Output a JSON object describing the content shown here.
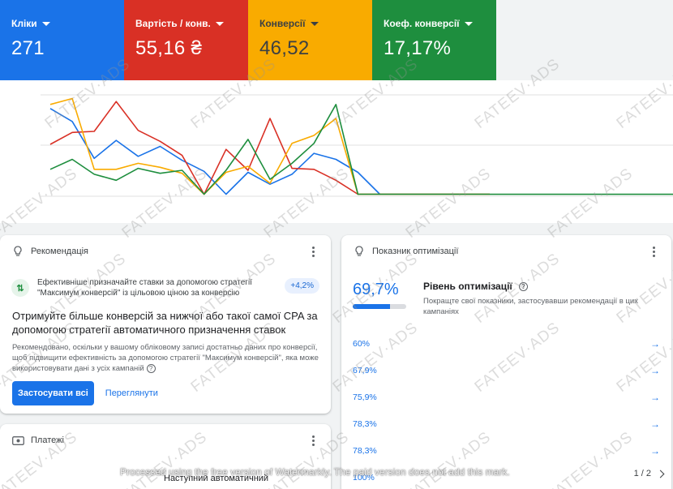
{
  "metrics": [
    {
      "label": "Кліки",
      "value": "271",
      "color": "#1a73e8"
    },
    {
      "label": "Вартість / конв.",
      "value": "55,16 ₴",
      "color": "#d93025"
    },
    {
      "label": "Конверсії",
      "value": "46,52",
      "color": "#f9ab00"
    },
    {
      "label": "Коеф. конверсії",
      "value": "17,17%",
      "color": "#1e8e3e"
    }
  ],
  "chart_data": {
    "type": "line",
    "grid": true,
    "legend": "none",
    "x": [
      1,
      2,
      3,
      4,
      5,
      6,
      7,
      8,
      9,
      10,
      11,
      12,
      13,
      14,
      15,
      16,
      17,
      18,
      19,
      20,
      21
    ],
    "series": [
      {
        "color": "#1a73e8",
        "values": [
          0.88,
          0.75,
          0.38,
          0.56,
          0.4,
          0.5,
          0.36,
          0.25,
          0.02,
          0.24,
          0.12,
          0.22,
          0.43,
          0.37,
          0.24,
          0.02,
          0.02,
          0.02,
          0.02,
          0.02,
          0.02
        ]
      },
      {
        "color": "#d93025",
        "values": [
          0.52,
          0.64,
          0.65,
          0.95,
          0.66,
          0.55,
          0.41,
          0.02,
          0.47,
          0.26,
          0.78,
          0.28,
          0.27,
          0.16,
          0.02,
          0.02,
          0.02,
          0.02,
          0.02,
          0.02,
          0.02
        ]
      },
      {
        "color": "#f9ab00",
        "values": [
          0.92,
          0.98,
          0.27,
          0.27,
          0.33,
          0.29,
          0.23,
          0.02,
          0.24,
          0.3,
          0.13,
          0.53,
          0.61,
          0.78,
          0.02,
          0.02,
          0.02,
          0.02,
          0.02,
          0.02,
          0.02
        ]
      },
      {
        "color": "#1e8e3e",
        "values": [
          0.27,
          0.37,
          0.22,
          0.16,
          0.28,
          0.23,
          0.26,
          0.02,
          0.26,
          0.57,
          0.17,
          0.33,
          0.53,
          0.92,
          0.02,
          0.02,
          0.02,
          0.02,
          0.02,
          0.02,
          0.02
        ]
      }
    ]
  },
  "recommendation": {
    "title": "Рекомендація",
    "tip": "Ефективніше призначайте ставки за допомогою стратегії \"Максимум конверсій\" із цільовою ціною за конверсію",
    "tip_badge": "+4,2%",
    "headline": "Отримуйте більше конверсій за нижчої або такої самої CPA за допомогою стратегії автоматичного призначення ставок",
    "description": "Рекомендовано, оскільки у вашому обліковому записі достатньо даних про конверсії, щоб підвищити ефективність за допомогою стратегії \"Максимум конверсій\", яка може використовувати дані з усіх кампаній",
    "apply_all": "Застосувати всі",
    "view": "Переглянути"
  },
  "payments": {
    "title": "Платежі",
    "subtext": "Наступний автоматичний"
  },
  "optimization": {
    "title": "Показник оптимізації",
    "score": "69,7%",
    "score_fraction": 0.697,
    "score_title": "Рівень оптимізації",
    "score_desc": "Покращте свої показники, застосувавши рекомендації в цих кампаніях",
    "rows": [
      "60%",
      "67,9%",
      "75,9%",
      "78,3%",
      "78,3%",
      "100%"
    ],
    "pager": "1 / 2"
  },
  "watermark": {
    "text": "FATEEV·ADS",
    "banner": "Processed using the free version of Watermarkly. The paid version does not add this mark."
  }
}
